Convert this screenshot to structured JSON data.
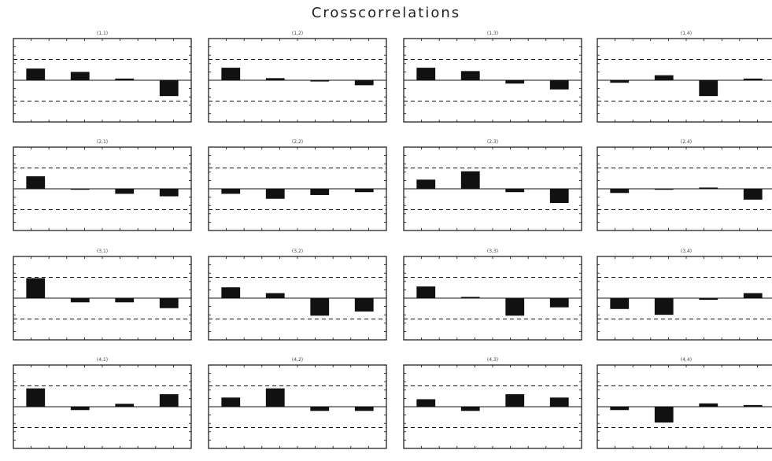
{
  "page": {
    "title": "Crosscorrelations"
  },
  "chart_data": [
    {
      "type": "bar",
      "title": "(1,1)",
      "x": [
        1,
        2,
        3,
        4
      ],
      "values": [
        0.28,
        0.2,
        0.04,
        -0.38
      ],
      "ylim": [
        -1,
        1
      ],
      "conf_band": [
        -0.5,
        0.5
      ],
      "grid": false
    },
    {
      "type": "bar",
      "title": "(1,2)",
      "x": [
        1,
        2,
        3,
        4
      ],
      "values": [
        0.3,
        0.05,
        -0.03,
        -0.12
      ],
      "ylim": [
        -1,
        1
      ],
      "conf_band": [
        -0.5,
        0.5
      ],
      "grid": false
    },
    {
      "type": "bar",
      "title": "(1,3)",
      "x": [
        1,
        2,
        3,
        4
      ],
      "values": [
        0.3,
        0.22,
        -0.08,
        -0.22
      ],
      "ylim": [
        -1,
        1
      ],
      "conf_band": [
        -0.5,
        0.5
      ],
      "grid": false
    },
    {
      "type": "bar",
      "title": "(1,4)",
      "x": [
        1,
        2,
        3,
        4
      ],
      "values": [
        -0.06,
        0.12,
        -0.38,
        0.04
      ],
      "ylim": [
        -1,
        1
      ],
      "conf_band": [
        -0.5,
        0.5
      ],
      "grid": false
    },
    {
      "type": "bar",
      "title": "(2,1)",
      "x": [
        1,
        2,
        3,
        4
      ],
      "values": [
        0.3,
        0.0,
        -0.12,
        -0.18
      ],
      "ylim": [
        -1,
        1
      ],
      "conf_band": [
        -0.5,
        0.5
      ],
      "grid": false
    },
    {
      "type": "bar",
      "title": "(2,2)",
      "x": [
        1,
        2,
        3,
        4
      ],
      "values": [
        -0.12,
        -0.24,
        -0.15,
        -0.08
      ],
      "ylim": [
        -1,
        1
      ],
      "conf_band": [
        -0.5,
        0.5
      ],
      "grid": false
    },
    {
      "type": "bar",
      "title": "(2,3)",
      "x": [
        1,
        2,
        3,
        4
      ],
      "values": [
        0.22,
        0.42,
        -0.08,
        -0.34
      ],
      "ylim": [
        -1,
        1
      ],
      "conf_band": [
        -0.5,
        0.5
      ],
      "grid": false
    },
    {
      "type": "bar",
      "title": "(2,4)",
      "x": [
        1,
        2,
        3,
        4
      ],
      "values": [
        -0.1,
        0.0,
        0.03,
        -0.26
      ],
      "ylim": [
        -1,
        1
      ],
      "conf_band": [
        -0.5,
        0.5
      ],
      "grid": false
    },
    {
      "type": "bar",
      "title": "(3,1)",
      "x": [
        1,
        2,
        3,
        4
      ],
      "values": [
        0.48,
        -0.1,
        -0.1,
        -0.24
      ],
      "ylim": [
        -1,
        1
      ],
      "conf_band": [
        -0.5,
        0.5
      ],
      "grid": false
    },
    {
      "type": "bar",
      "title": "(3,2)",
      "x": [
        1,
        2,
        3,
        4
      ],
      "values": [
        0.26,
        0.12,
        -0.42,
        -0.32
      ],
      "ylim": [
        -1,
        1
      ],
      "conf_band": [
        -0.5,
        0.5
      ],
      "grid": false
    },
    {
      "type": "bar",
      "title": "(3,3)",
      "x": [
        1,
        2,
        3,
        4
      ],
      "values": [
        0.28,
        0.03,
        -0.42,
        -0.22
      ],
      "ylim": [
        -1,
        1
      ],
      "conf_band": [
        -0.5,
        0.5
      ],
      "grid": false
    },
    {
      "type": "bar",
      "title": "(3,4)",
      "x": [
        1,
        2,
        3,
        4
      ],
      "values": [
        -0.26,
        -0.4,
        -0.04,
        0.12
      ],
      "ylim": [
        -1,
        1
      ],
      "conf_band": [
        -0.5,
        0.5
      ],
      "grid": false
    },
    {
      "type": "bar",
      "title": "(4,1)",
      "x": [
        1,
        2,
        3,
        4
      ],
      "values": [
        0.44,
        -0.08,
        0.07,
        0.3
      ],
      "ylim": [
        -1,
        1
      ],
      "conf_band": [
        -0.5,
        0.5
      ],
      "grid": false
    },
    {
      "type": "bar",
      "title": "(4,2)",
      "x": [
        1,
        2,
        3,
        4
      ],
      "values": [
        0.22,
        0.44,
        -0.1,
        -0.1
      ],
      "ylim": [
        -1,
        1
      ],
      "conf_band": [
        -0.5,
        0.5
      ],
      "grid": false
    },
    {
      "type": "bar",
      "title": "(4,3)",
      "x": [
        1,
        2,
        3,
        4
      ],
      "values": [
        0.18,
        -0.1,
        0.3,
        0.22
      ],
      "ylim": [
        -1,
        1
      ],
      "conf_band": [
        -0.5,
        0.5
      ],
      "grid": false
    },
    {
      "type": "bar",
      "title": "(4,4)",
      "x": [
        1,
        2,
        3,
        4
      ],
      "values": [
        -0.08,
        -0.38,
        0.08,
        0.04
      ],
      "ylim": [
        -1,
        1
      ],
      "conf_band": [
        -0.5,
        0.5
      ],
      "grid": false
    }
  ]
}
